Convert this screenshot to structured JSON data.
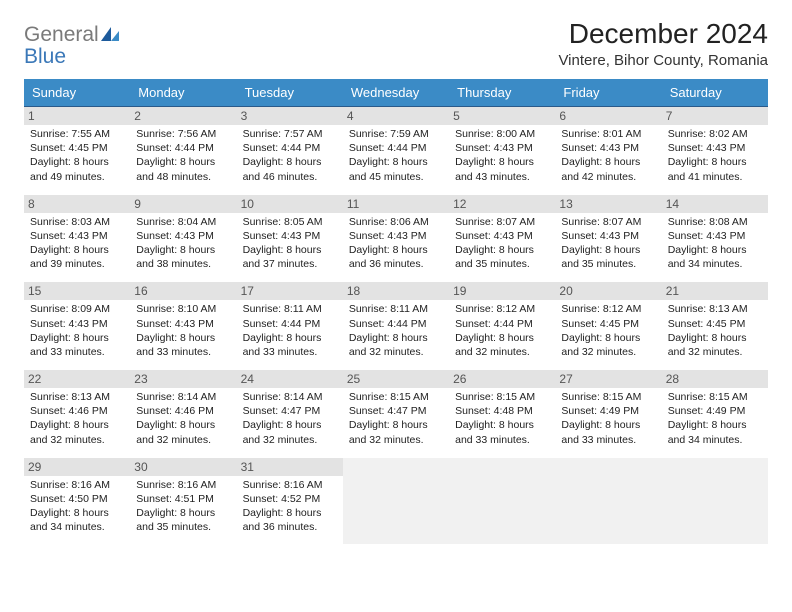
{
  "logo": {
    "general": "General",
    "blue": "Blue"
  },
  "title": "December 2024",
  "location": "Vintere, Bihor County, Romania",
  "colors": {
    "header_bg": "#3b8bc6",
    "header_text": "#ffffff",
    "daynum_bg": "#e3e3e3",
    "row_border": "#2a5a8a",
    "logo_gray": "#7a7a7a",
    "logo_blue": "#3b78b8",
    "page_bg": "#ffffff"
  },
  "weekdays": [
    "Sunday",
    "Monday",
    "Tuesday",
    "Wednesday",
    "Thursday",
    "Friday",
    "Saturday"
  ],
  "days": [
    {
      "n": "1",
      "sr": "7:55 AM",
      "ss": "4:45 PM",
      "dl": "8 hours and 49 minutes."
    },
    {
      "n": "2",
      "sr": "7:56 AM",
      "ss": "4:44 PM",
      "dl": "8 hours and 48 minutes."
    },
    {
      "n": "3",
      "sr": "7:57 AM",
      "ss": "4:44 PM",
      "dl": "8 hours and 46 minutes."
    },
    {
      "n": "4",
      "sr": "7:59 AM",
      "ss": "4:44 PM",
      "dl": "8 hours and 45 minutes."
    },
    {
      "n": "5",
      "sr": "8:00 AM",
      "ss": "4:43 PM",
      "dl": "8 hours and 43 minutes."
    },
    {
      "n": "6",
      "sr": "8:01 AM",
      "ss": "4:43 PM",
      "dl": "8 hours and 42 minutes."
    },
    {
      "n": "7",
      "sr": "8:02 AM",
      "ss": "4:43 PM",
      "dl": "8 hours and 41 minutes."
    },
    {
      "n": "8",
      "sr": "8:03 AM",
      "ss": "4:43 PM",
      "dl": "8 hours and 39 minutes."
    },
    {
      "n": "9",
      "sr": "8:04 AM",
      "ss": "4:43 PM",
      "dl": "8 hours and 38 minutes."
    },
    {
      "n": "10",
      "sr": "8:05 AM",
      "ss": "4:43 PM",
      "dl": "8 hours and 37 minutes."
    },
    {
      "n": "11",
      "sr": "8:06 AM",
      "ss": "4:43 PM",
      "dl": "8 hours and 36 minutes."
    },
    {
      "n": "12",
      "sr": "8:07 AM",
      "ss": "4:43 PM",
      "dl": "8 hours and 35 minutes."
    },
    {
      "n": "13",
      "sr": "8:07 AM",
      "ss": "4:43 PM",
      "dl": "8 hours and 35 minutes."
    },
    {
      "n": "14",
      "sr": "8:08 AM",
      "ss": "4:43 PM",
      "dl": "8 hours and 34 minutes."
    },
    {
      "n": "15",
      "sr": "8:09 AM",
      "ss": "4:43 PM",
      "dl": "8 hours and 33 minutes."
    },
    {
      "n": "16",
      "sr": "8:10 AM",
      "ss": "4:43 PM",
      "dl": "8 hours and 33 minutes."
    },
    {
      "n": "17",
      "sr": "8:11 AM",
      "ss": "4:44 PM",
      "dl": "8 hours and 33 minutes."
    },
    {
      "n": "18",
      "sr": "8:11 AM",
      "ss": "4:44 PM",
      "dl": "8 hours and 32 minutes."
    },
    {
      "n": "19",
      "sr": "8:12 AM",
      "ss": "4:44 PM",
      "dl": "8 hours and 32 minutes."
    },
    {
      "n": "20",
      "sr": "8:12 AM",
      "ss": "4:45 PM",
      "dl": "8 hours and 32 minutes."
    },
    {
      "n": "21",
      "sr": "8:13 AM",
      "ss": "4:45 PM",
      "dl": "8 hours and 32 minutes."
    },
    {
      "n": "22",
      "sr": "8:13 AM",
      "ss": "4:46 PM",
      "dl": "8 hours and 32 minutes."
    },
    {
      "n": "23",
      "sr": "8:14 AM",
      "ss": "4:46 PM",
      "dl": "8 hours and 32 minutes."
    },
    {
      "n": "24",
      "sr": "8:14 AM",
      "ss": "4:47 PM",
      "dl": "8 hours and 32 minutes."
    },
    {
      "n": "25",
      "sr": "8:15 AM",
      "ss": "4:47 PM",
      "dl": "8 hours and 32 minutes."
    },
    {
      "n": "26",
      "sr": "8:15 AM",
      "ss": "4:48 PM",
      "dl": "8 hours and 33 minutes."
    },
    {
      "n": "27",
      "sr": "8:15 AM",
      "ss": "4:49 PM",
      "dl": "8 hours and 33 minutes."
    },
    {
      "n": "28",
      "sr": "8:15 AM",
      "ss": "4:49 PM",
      "dl": "8 hours and 34 minutes."
    },
    {
      "n": "29",
      "sr": "8:16 AM",
      "ss": "4:50 PM",
      "dl": "8 hours and 34 minutes."
    },
    {
      "n": "30",
      "sr": "8:16 AM",
      "ss": "4:51 PM",
      "dl": "8 hours and 35 minutes."
    },
    {
      "n": "31",
      "sr": "8:16 AM",
      "ss": "4:52 PM",
      "dl": "8 hours and 36 minutes."
    }
  ],
  "labels": {
    "sunrise": "Sunrise: ",
    "sunset": "Sunset: ",
    "daylight": "Daylight: "
  }
}
